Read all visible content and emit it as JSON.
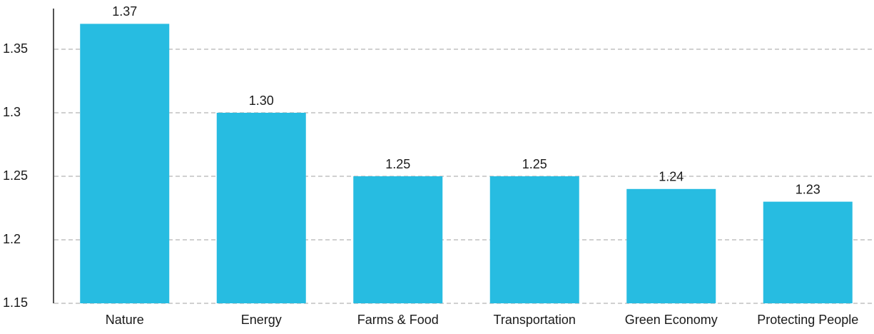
{
  "chart_data": {
    "type": "bar",
    "categories": [
      "Nature",
      "Energy",
      "Farms & Food",
      "Transportation",
      "Green Economy",
      "Protecting People"
    ],
    "values": [
      1.37,
      1.3,
      1.25,
      1.25,
      1.24,
      1.23
    ],
    "value_labels": [
      "1.37",
      "1.30",
      "1.25",
      "1.25",
      "1.24",
      "1.23"
    ],
    "color": "#27bce1",
    "ylim": [
      1.15,
      1.38
    ],
    "yticks": [
      1.15,
      1.2,
      1.25,
      1.3,
      1.35
    ],
    "grid": true
  }
}
